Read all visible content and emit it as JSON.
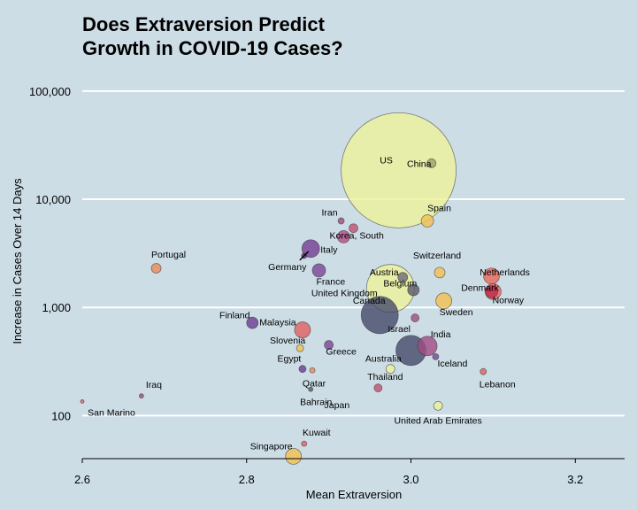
{
  "chart_data": {
    "type": "scatter",
    "title": [
      "Does Extraversion Predict",
      "Growth in COVID-19 Cases?"
    ],
    "xlabel": "Mean Extraversion",
    "ylabel": "Increase in Cases Over 14 Days",
    "xlim": [
      2.6,
      3.26
    ],
    "ylim": [
      40,
      140000
    ],
    "y_scale": "log",
    "x_ticks": [
      2.6,
      2.8,
      3.0,
      3.2
    ],
    "x_tick_labels": [
      "2.6",
      "2.8",
      "3.0",
      "3.2"
    ],
    "y_ticks": [
      100,
      1000,
      10000,
      100000
    ],
    "y_tick_labels": [
      "100",
      "1,000",
      "10,000",
      "100,000"
    ],
    "grid": "horizontal",
    "legend": "none",
    "points": [
      {
        "label": "US",
        "x": 2.985,
        "y": 18500,
        "size": 65,
        "color": "#eef39a"
      },
      {
        "label": "China",
        "x": 3.025,
        "y": 21500,
        "size": 5,
        "color": "#9aa06a"
      },
      {
        "label": "Spain",
        "x": 3.02,
        "y": 6300,
        "size": 7,
        "color": "#f2c050"
      },
      {
        "label": "Iran",
        "x": 2.915,
        "y": 6300,
        "size": 3.5,
        "color": "#a04c82"
      },
      {
        "label": "Korea, South",
        "x": 2.93,
        "y": 5400,
        "size": 5,
        "color": "#c55070"
      },
      {
        "label": "",
        "x": 2.918,
        "y": 4500,
        "size": 7,
        "color": "#b54a86"
      },
      {
        "label": "Italy",
        "x": 2.878,
        "y": 3500,
        "size": 10,
        "color": "#743c94"
      },
      {
        "label": "Germany",
        "x": 2.87,
        "y": 3000,
        "size": 3,
        "color": "#5a2a7a"
      },
      {
        "label": "France",
        "x": 2.888,
        "y": 2200,
        "size": 7.5,
        "color": "#7a4596"
      },
      {
        "label": "Portugal",
        "x": 2.69,
        "y": 2300,
        "size": 5.5,
        "color": "#e98c5a"
      },
      {
        "label": "Austria",
        "x": 2.99,
        "y": 1900,
        "size": 5.5,
        "color": "#6a6a7a"
      },
      {
        "label": "Switzerland",
        "x": 3.035,
        "y": 2100,
        "size": 6,
        "color": "#f2c050"
      },
      {
        "label": "Netherlands",
        "x": 3.098,
        "y": 1950,
        "size": 9,
        "color": "#e8685a"
      },
      {
        "label": "Denmark",
        "x": 3.098,
        "y": 1400,
        "size": 7,
        "color": "#c02850"
      },
      {
        "label": "Norway",
        "x": 3.1,
        "y": 1400,
        "size": 9,
        "color": "#e8685a"
      },
      {
        "label": "United Kingdom",
        "x": 2.975,
        "y": 1500,
        "size": 27,
        "color": "#eef39a"
      },
      {
        "label": "Belgium",
        "x": 3.003,
        "y": 1450,
        "size": 6.5,
        "color": "#5a5a6a"
      },
      {
        "label": "Sweden",
        "x": 3.04,
        "y": 1150,
        "size": 9,
        "color": "#f2c050"
      },
      {
        "label": "Canada",
        "x": 2.962,
        "y": 850,
        "size": 21,
        "color": "#454a6a"
      },
      {
        "label": "Israel",
        "x": 3.005,
        "y": 800,
        "size": 4.5,
        "color": "#a04c82"
      },
      {
        "label": "Finland",
        "x": 2.807,
        "y": 720,
        "size": 6.5,
        "color": "#6c3c94"
      },
      {
        "label": "Malaysia",
        "x": 2.868,
        "y": 620,
        "size": 9,
        "color": "#e06060"
      },
      {
        "label": "India",
        "x": 3.02,
        "y": 440,
        "size": 11,
        "color": "#a04c82"
      },
      {
        "label": "",
        "x": 3.0,
        "y": 400,
        "size": 17,
        "color": "#454a6a"
      },
      {
        "label": "Slovenia",
        "x": 2.865,
        "y": 420,
        "size": 4,
        "color": "#f2c050"
      },
      {
        "label": "Greece",
        "x": 2.9,
        "y": 450,
        "size": 5,
        "color": "#7a4596"
      },
      {
        "label": "Iceland",
        "x": 3.03,
        "y": 350,
        "size": 3.5,
        "color": "#7a4596"
      },
      {
        "label": "Australia",
        "x": 2.975,
        "y": 270,
        "size": 5,
        "color": "#eef39a"
      },
      {
        "label": "Egypt",
        "x": 2.868,
        "y": 270,
        "size": 4,
        "color": "#6c3c94"
      },
      {
        "label": "Qatar",
        "x": 2.88,
        "y": 262,
        "size": 3,
        "color": "#e98c5a"
      },
      {
        "label": "Lebanon",
        "x": 3.088,
        "y": 255,
        "size": 3.5,
        "color": "#e06060"
      },
      {
        "label": "Thailand",
        "x": 2.96,
        "y": 180,
        "size": 4.5,
        "color": "#c55070"
      },
      {
        "label": "Bahrain",
        "x": 2.878,
        "y": 175,
        "size": 2.5,
        "color": "#5a5a6a"
      },
      {
        "label": "Iraq",
        "x": 2.672,
        "y": 152,
        "size": 2.5,
        "color": "#a04c82"
      },
      {
        "label": "United Arab Emirates",
        "x": 3.033,
        "y": 123,
        "size": 5,
        "color": "#eef39a"
      },
      {
        "label": "San Marino",
        "x": 2.6,
        "y": 135,
        "size": 2,
        "color": "#e06060"
      },
      {
        "label": "Japan",
        "x": 2.925,
        "y": 150,
        "size": 0,
        "color": "#c55070"
      },
      {
        "label": "Kuwait",
        "x": 2.87,
        "y": 55,
        "size": 3,
        "color": "#e06060"
      },
      {
        "label": "Singapore",
        "x": 2.857,
        "y": 42,
        "size": 9,
        "color": "#f2c050"
      }
    ]
  }
}
